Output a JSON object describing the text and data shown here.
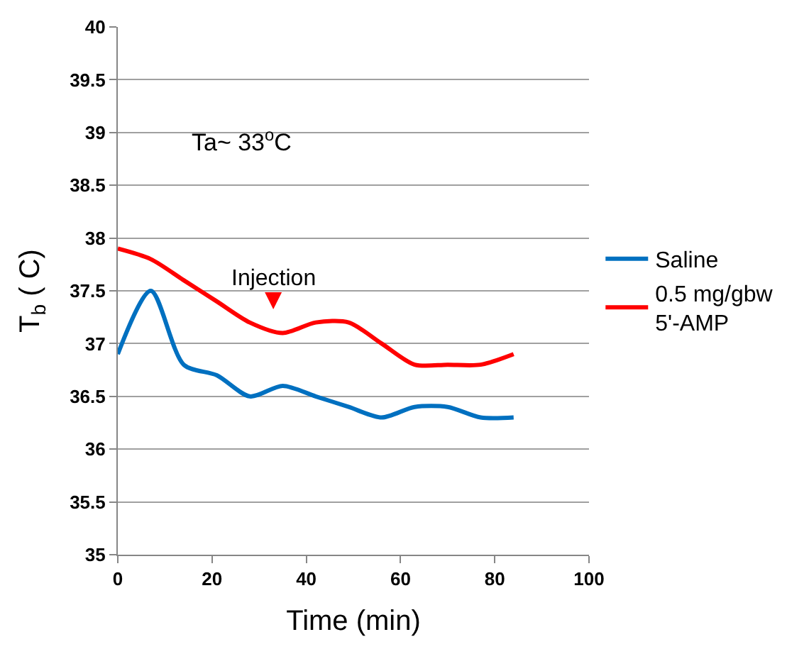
{
  "chart_data": {
    "type": "line",
    "xlabel": "Time (min)",
    "ylabel": "T$_{b}$ ( C)",
    "x": [
      0,
      7,
      14,
      21,
      28,
      35,
      42,
      49,
      56,
      63,
      70,
      77,
      84
    ],
    "series": [
      {
        "name": "Saline",
        "color": "#0070c0",
        "values": [
          36.9,
          37.5,
          36.8,
          36.7,
          36.5,
          36.6,
          36.5,
          36.4,
          36.3,
          36.4,
          36.4,
          36.3,
          36.3
        ]
      },
      {
        "name": "0.5 mg/gbw\n5'-AMP",
        "color": "#ff0000",
        "values": [
          37.9,
          37.8,
          37.6,
          37.4,
          37.2,
          37.1,
          37.2,
          37.2,
          37.0,
          36.8,
          36.8,
          36.8,
          36.9
        ]
      }
    ],
    "xlim": [
      0,
      100
    ],
    "xticks": [
      0,
      20,
      40,
      60,
      80,
      100
    ],
    "ylim": [
      35,
      40
    ],
    "yticks": [
      35,
      35.5,
      36,
      36.5,
      37,
      37.5,
      38,
      38.5,
      39,
      39.5,
      40
    ],
    "annotations": [
      "Ta~ 33$^{o}$C",
      "Injection"
    ],
    "grid": "y",
    "legend": "right",
    "marker": "none",
    "line_style": "solid"
  }
}
